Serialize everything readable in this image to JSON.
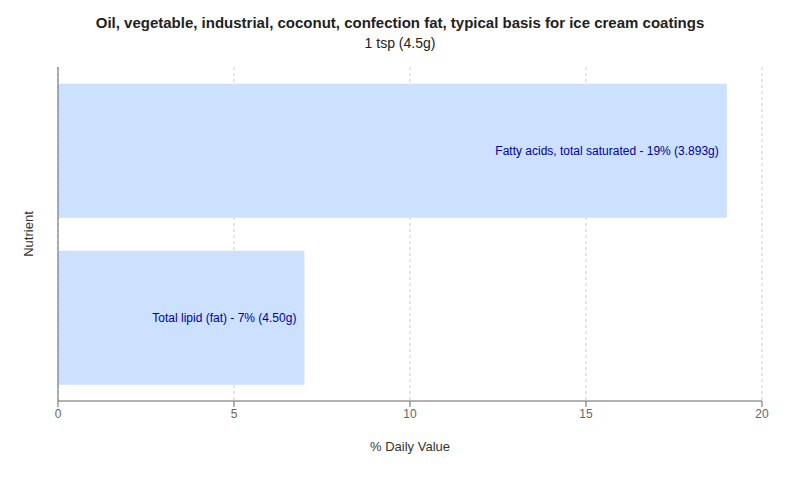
{
  "chart_data": {
    "type": "bar",
    "orientation": "horizontal",
    "title": "Oil, vegetable, industrial, coconut, confection fat, typical basis for ice cream coatings",
    "subtitle": "1 tsp (4.5g)",
    "categories": [
      null,
      null
    ],
    "values": [
      19,
      7
    ],
    "value_labels": [
      "Fatty acids, total saturated - 19% (3.893g)",
      "Total lipid (fat) - 7% (4.50g)"
    ],
    "data_labels": true,
    "color": "#cce0ff",
    "xlabel": "% Daily Value",
    "ylabel": "Nutrient",
    "xlim": [
      0,
      20
    ],
    "xticks": [
      0,
      5,
      10,
      15,
      20
    ],
    "grid": true,
    "tick_labels": "x"
  }
}
